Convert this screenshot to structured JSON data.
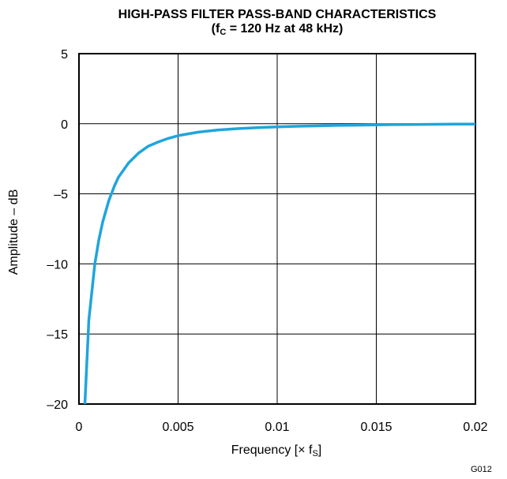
{
  "chart_data": {
    "type": "line",
    "title_line1": "HIGH-PASS FILTER PASS-BAND CHARACTERISTICS",
    "title_line2_prefix": "(f",
    "title_line2_sub": "C",
    "title_line2_suffix": " = 120 Hz at 48 kHz)",
    "xlabel_prefix": "Frequency [",
    "xlabel_times": "×",
    "xlabel_f": " f",
    "xlabel_sub": "S",
    "xlabel_suffix": "]",
    "ylabel": "Amplitude – dB",
    "xlim": [
      0,
      0.02
    ],
    "ylim": [
      -20,
      5
    ],
    "x_ticks": [
      0,
      0.005,
      0.01,
      0.015,
      0.02
    ],
    "x_tick_labels": [
      "0",
      "0.005",
      "0.01",
      "0.015",
      "0.02"
    ],
    "y_ticks": [
      5,
      0,
      -5,
      -10,
      -15,
      -20
    ],
    "y_tick_labels": [
      "5",
      "0",
      "–5",
      "–10",
      "–15",
      "–20"
    ],
    "grid": true,
    "series_color": "#1fa5dc",
    "series": [
      {
        "x": [
          0.0003,
          0.0005,
          0.0008,
          0.001,
          0.0012,
          0.0015,
          0.0018,
          0.002,
          0.0025,
          0.003,
          0.0035,
          0.004,
          0.0045,
          0.005,
          0.006,
          0.007,
          0.008,
          0.009,
          0.01,
          0.011,
          0.012,
          0.013,
          0.014,
          0.015,
          0.016,
          0.017,
          0.018,
          0.019,
          0.02
        ],
        "y": [
          -20,
          -14,
          -10,
          -8.3,
          -7,
          -5.5,
          -4.4,
          -3.8,
          -2.8,
          -2.1,
          -1.6,
          -1.3,
          -1.05,
          -0.85,
          -0.6,
          -0.45,
          -0.35,
          -0.28,
          -0.22,
          -0.18,
          -0.15,
          -0.12,
          -0.1,
          -0.08,
          -0.06,
          -0.05,
          -0.04,
          -0.03,
          -0.02
        ]
      }
    ]
  },
  "figure_code": "G012"
}
